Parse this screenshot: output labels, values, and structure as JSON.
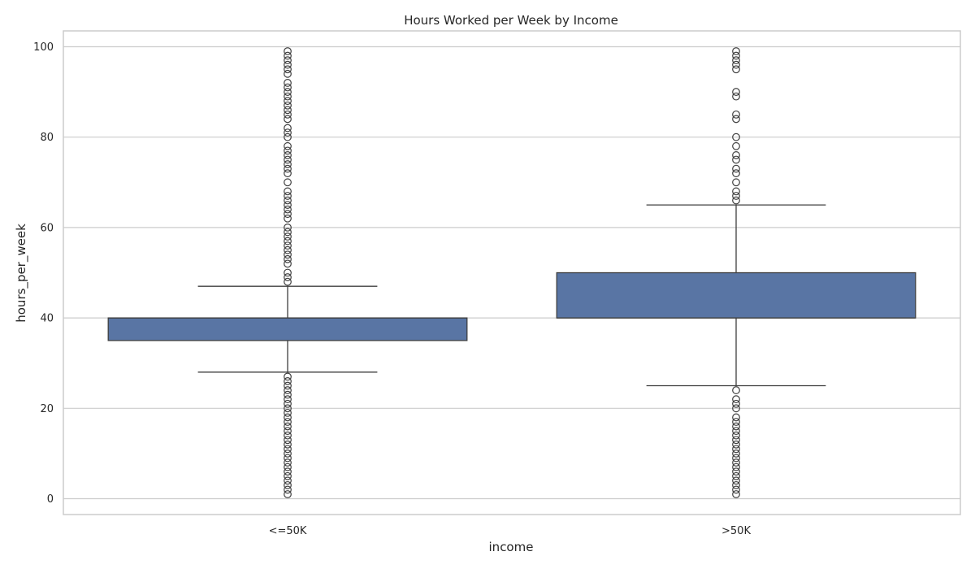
{
  "chart_data": {
    "type": "box",
    "title": "Hours Worked per Week by Income",
    "xlabel": "income",
    "ylabel": "hours_per_week",
    "ylim": [
      -3.5,
      103.5
    ],
    "yticks": [
      0,
      20,
      40,
      60,
      80,
      100
    ],
    "grid": true,
    "categories": [
      "<=50K",
      ">50K"
    ],
    "boxes": [
      {
        "category": "<=50K",
        "whisker_low": 28,
        "q1": 35,
        "median": 40,
        "q3": 40,
        "whisker_high": 47,
        "outliers": [
          1,
          2,
          3,
          4,
          5,
          6,
          7,
          8,
          9,
          10,
          11,
          12,
          13,
          14,
          15,
          16,
          17,
          18,
          19,
          20,
          21,
          22,
          23,
          24,
          25,
          26,
          27,
          48,
          49,
          50,
          52,
          53,
          54,
          55,
          56,
          57,
          58,
          59,
          60,
          62,
          63,
          64,
          65,
          66,
          67,
          68,
          70,
          72,
          73,
          74,
          75,
          76,
          77,
          78,
          80,
          81,
          82,
          84,
          85,
          86,
          87,
          88,
          89,
          90,
          91,
          92,
          94,
          95,
          96,
          97,
          98,
          99
        ]
      },
      {
        "category": ">50K",
        "whisker_low": 25,
        "q1": 40,
        "median": 40,
        "q3": 50,
        "whisker_high": 65,
        "outliers": [
          1,
          2,
          3,
          4,
          5,
          6,
          7,
          8,
          9,
          10,
          11,
          12,
          13,
          14,
          15,
          16,
          17,
          18,
          20,
          21,
          22,
          24,
          66,
          67,
          68,
          70,
          72,
          73,
          75,
          76,
          78,
          80,
          84,
          85,
          89,
          90,
          95,
          96,
          97,
          98,
          99
        ]
      }
    ],
    "colors": {
      "box_fill": "#5975a4",
      "line": "#3f3f3f",
      "grid": "#cccccc",
      "frame": "#cccccc",
      "text": "#262626"
    }
  }
}
